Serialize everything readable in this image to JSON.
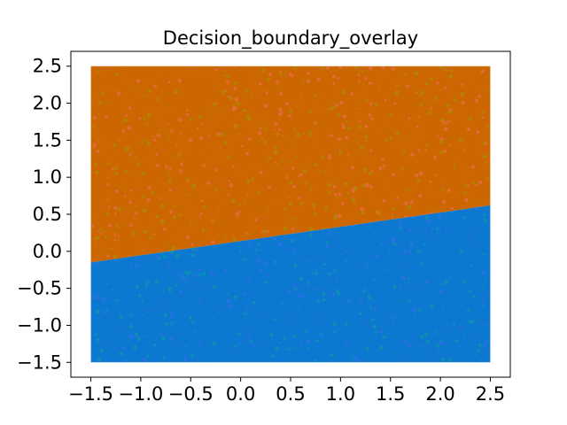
{
  "chart_data": {
    "type": "scatter",
    "title": "Decision_boundary_overlay",
    "xlabel": "",
    "ylabel": "",
    "xlim": [
      -1.7,
      2.7
    ],
    "ylim": [
      -1.7,
      2.7
    ],
    "xticks": [
      -1.5,
      -1.0,
      -0.5,
      0.0,
      0.5,
      1.0,
      1.5,
      2.0,
      2.5
    ],
    "yticks": [
      -1.5,
      -1.0,
      -0.5,
      0.0,
      0.5,
      1.0,
      1.5,
      2.0,
      2.5
    ],
    "xtick_labels": [
      "−1.5",
      "−1.0",
      "−0.5",
      "0.0",
      "0.5",
      "1.0",
      "1.5",
      "2.0",
      "2.5"
    ],
    "ytick_labels": [
      "−1.5",
      "−1.0",
      "−0.5",
      "0.0",
      "0.5",
      "1.0",
      "1.5",
      "2.0",
      "2.5"
    ],
    "grid": false,
    "x_range": [
      -1.5,
      2.5
    ],
    "y_range": [
      -1.5,
      2.5
    ],
    "boundary": {
      "x": [
        -1.5,
        2.5
      ],
      "y": [
        -0.15,
        0.62
      ]
    },
    "regions": [
      {
        "side": "above",
        "fill_color": "#cc6600",
        "point_colors": [
          "#f07060",
          "#a09a00",
          "#c86a10"
        ]
      },
      {
        "side": "below",
        "fill_color": "#0a78d0",
        "point_colors": [
          "#3a6ef0",
          "#10a0a0",
          "#0a7cd0"
        ]
      }
    ]
  }
}
